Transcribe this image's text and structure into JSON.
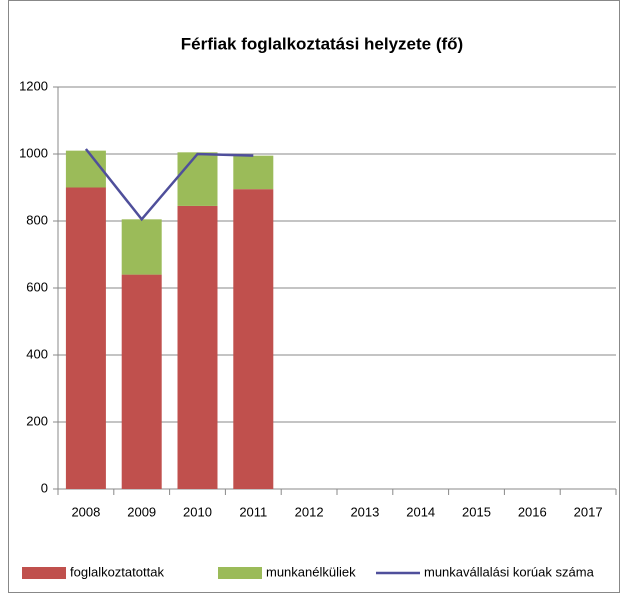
{
  "chart_data": {
    "type": "stacked-bar-line",
    "title": "Férfiak foglalkoztatási helyzete (fő)",
    "categories": [
      "2008",
      "2009",
      "2010",
      "2011",
      "2012",
      "2013",
      "2014",
      "2015",
      "2016",
      "2017"
    ],
    "series": [
      {
        "name": "foglalkoztatottak",
        "color": "#c0504d",
        "kind": "bar",
        "values": [
          900,
          640,
          845,
          895,
          null,
          null,
          null,
          null,
          null,
          null
        ]
      },
      {
        "name": "munkanélküliek",
        "color": "#9bbb59",
        "kind": "bar",
        "values": [
          110,
          165,
          160,
          100,
          null,
          null,
          null,
          null,
          null,
          null
        ]
      },
      {
        "name": "munkavállalási korúak száma",
        "color": "#4f4f9b",
        "kind": "line",
        "values": [
          1015,
          805,
          1000,
          995,
          null,
          null,
          null,
          null,
          null,
          null
        ]
      }
    ],
    "ylim": [
      0,
      1200
    ],
    "yticks": [
      0,
      200,
      400,
      600,
      800,
      1000,
      1200
    ],
    "grid": true,
    "legend": "bottom"
  }
}
